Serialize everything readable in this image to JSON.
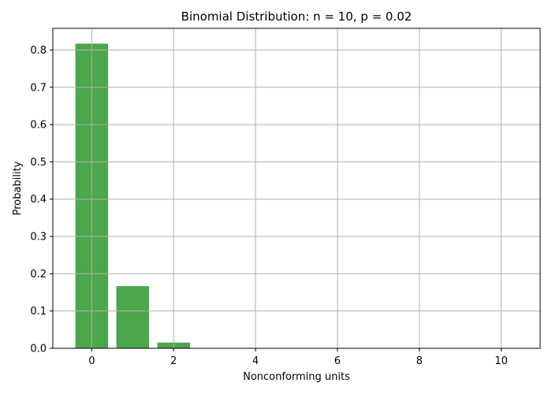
{
  "chart_data": {
    "type": "bar",
    "title": "Binomial Distribution: n = 10, p = 0.02",
    "xlabel": "Nonconforming units",
    "ylabel": "Probability",
    "x": [
      0,
      1,
      2,
      3,
      4,
      5,
      6,
      7,
      8,
      9,
      10
    ],
    "values": [
      0.817073,
      0.16675,
      0.015314,
      0.000833,
      2.98e-05,
      7.3e-07,
      1.24e-08,
      0.0,
      0.0,
      0.0,
      0.0
    ],
    "xlim": [
      -0.95,
      10.95
    ],
    "ylim": [
      0,
      0.858
    ],
    "xticks": [
      0,
      2,
      4,
      6,
      8,
      10
    ],
    "xtick_labels": [
      "0",
      "2",
      "4",
      "6",
      "8",
      "10"
    ],
    "yticks": [
      0.0,
      0.1,
      0.2,
      0.3,
      0.4,
      0.5,
      0.6,
      0.7,
      0.8
    ],
    "ytick_labels": [
      "0.0",
      "0.1",
      "0.2",
      "0.3",
      "0.4",
      "0.5",
      "0.6",
      "0.7",
      "0.8"
    ],
    "grid": true,
    "bar_color": "#4ca64c",
    "grid_color": "#b0b0b0"
  }
}
